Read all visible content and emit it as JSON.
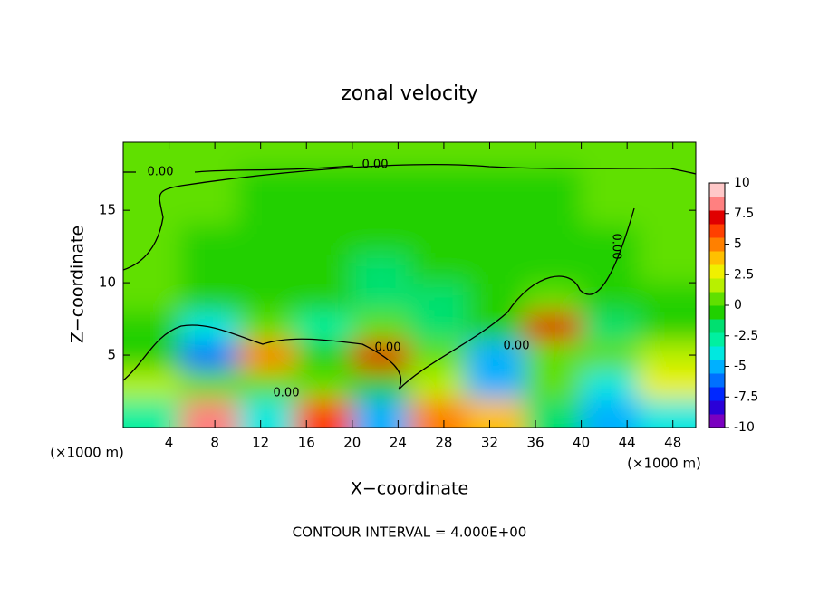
{
  "chart_data": {
    "type": "contour",
    "title": "zonal velocity",
    "subtitle": "CONTOUR INTERVAL = 4.000E+00",
    "xlabel": "X−coordinate",
    "ylabel": "Z−coordinate",
    "x_unit_label": "(×1000 m)",
    "x": [
      2.5,
      7.5,
      12.5,
      17.5,
      22.5,
      27.5,
      32.5,
      37.5,
      42.5,
      47.5
    ],
    "y": [
      1,
      3,
      5,
      7,
      9,
      11,
      13,
      15,
      17,
      19
    ],
    "z": [
      [
        -3,
        8,
        -4,
        6,
        -5,
        5,
        4,
        -2,
        -5,
        -4
      ],
      [
        2,
        1,
        1,
        0,
        -1,
        2,
        -5,
        1,
        -4,
        3
      ],
      [
        -1,
        -6,
        5,
        -1,
        7,
        0,
        -5,
        0,
        0,
        2
      ],
      [
        -1,
        -4,
        0,
        -3,
        0,
        -2,
        -1,
        7,
        -2,
        -1
      ],
      [
        1,
        -1,
        -1,
        -1,
        -2,
        -2,
        -1,
        0,
        -1,
        -1
      ],
      [
        1,
        -1,
        -1,
        -1,
        -2,
        -1,
        -1,
        -1,
        -1,
        0
      ],
      [
        1,
        -1,
        -1,
        -1,
        -1,
        -1,
        -1,
        -1,
        -1,
        1
      ],
      [
        1,
        0,
        -1,
        -1,
        -1,
        -1,
        -1,
        -1,
        0,
        1
      ],
      [
        1,
        0,
        -1,
        -1,
        -1,
        -1,
        -1,
        -1,
        0,
        1
      ],
      [
        1,
        1,
        1,
        1,
        1,
        1,
        1,
        1,
        1,
        1
      ]
    ],
    "xlim": [
      0,
      50
    ],
    "ylim": [
      0,
      19.7
    ],
    "xticks": [
      4,
      8,
      12,
      16,
      20,
      24,
      28,
      32,
      36,
      40,
      44,
      48
    ],
    "yticks": [
      5,
      10,
      15
    ],
    "colorbar_lim": [
      -10,
      10
    ],
    "colorbar_ticks": [
      10,
      7.5,
      5,
      2.5,
      0,
      -2.5,
      -5,
      -7.5,
      -10
    ],
    "colormap": [
      "#7a00c0",
      "#2a00d8",
      "#0028ff",
      "#0070ff",
      "#00b0ff",
      "#00e8e0",
      "#00f0a0",
      "#00e070",
      "#20d000",
      "#60e000",
      "#b8f000",
      "#f0f000",
      "#ffc000",
      "#ff8000",
      "#ff4000",
      "#e00000",
      "#ff8080",
      "#ffc8c8"
    ],
    "contour_labels": [
      "0.00",
      "0.00",
      "0.00",
      "0.00",
      "0.00",
      "0.00"
    ]
  }
}
